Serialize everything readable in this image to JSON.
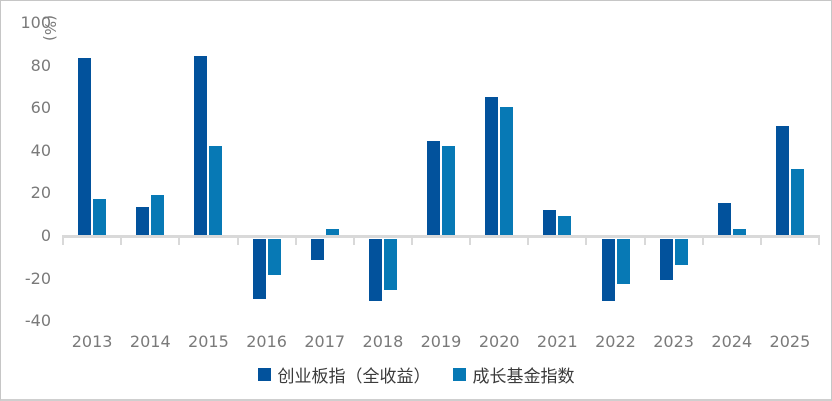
{
  "chart_data": {
    "type": "bar",
    "title": "",
    "xlabel": "",
    "ylabel": "(%)",
    "categories": [
      "2013",
      "2014",
      "2015",
      "2016",
      "2017",
      "2018",
      "2019",
      "2020",
      "2021",
      "2022",
      "2023",
      "2024",
      "2025"
    ],
    "series": [
      {
        "name": "创业板指（全收益）",
        "color": "#02529c",
        "values": [
          83,
          13,
          84,
          -28,
          -10,
          -29,
          44,
          65,
          12,
          -29,
          -19,
          15,
          51
        ]
      },
      {
        "name": "成长基金指数",
        "color": "#0779b5",
        "values": [
          17,
          19,
          42,
          -17,
          3,
          -24,
          42,
          60,
          9,
          -21,
          -12,
          3,
          31
        ]
      }
    ],
    "yticks": [
      100,
      80,
      60,
      40,
      20,
      0,
      -20,
      -40
    ],
    "ylim": [
      -40,
      100
    ],
    "grid": false,
    "legend_position": "bottom",
    "axis_line_color": "#d9d9d9",
    "tick_label_color": "#7a7a7a"
  }
}
